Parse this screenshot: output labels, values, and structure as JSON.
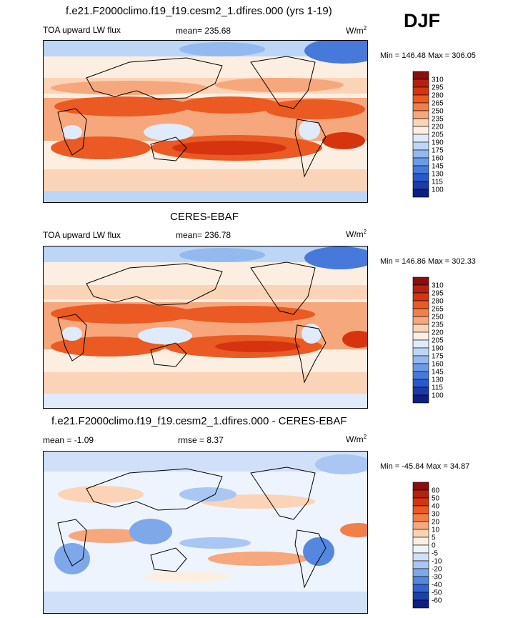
{
  "season_label": "DJF",
  "panels": [
    {
      "title": "f.e21.F2000climo.f19_f19.cesm2_1.dfires.000 (yrs 1-19)",
      "variable": "TOA upward LW flux",
      "stat_mean": "mean= 235.68",
      "stat_rmse": "",
      "units": "W/m",
      "units_exp": "2",
      "minmax": "Min = 146.48 Max = 306.05",
      "colorbar_levels": [
        "310",
        "295",
        "280",
        "265",
        "250",
        "235",
        "220",
        "205",
        "190",
        "175",
        "160",
        "145",
        "130",
        "115",
        "100"
      ],
      "colorbar_colors": [
        "#8b0d0d",
        "#b3220e",
        "#d6340f",
        "#ea5a22",
        "#f17f48",
        "#f6a77b",
        "#fbd3b6",
        "#fcefe2",
        "#dfeafb",
        "#bed6f6",
        "#94b9ef",
        "#6b9be6",
        "#4779db",
        "#2a59cc",
        "#1c3aa8",
        "#0d1f80"
      ]
    },
    {
      "title": "CERES-EBAF",
      "variable": "TOA upward LW flux",
      "stat_mean": "mean= 236.78",
      "stat_rmse": "",
      "units": "W/m",
      "units_exp": "2",
      "minmax": "Min = 146.86 Max = 302.33",
      "colorbar_levels": [
        "310",
        "295",
        "280",
        "265",
        "250",
        "235",
        "220",
        "205",
        "190",
        "175",
        "160",
        "145",
        "130",
        "115",
        "100"
      ],
      "colorbar_colors": [
        "#8b0d0d",
        "#b3220e",
        "#d6340f",
        "#ea5a22",
        "#f17f48",
        "#f6a77b",
        "#fbd3b6",
        "#fcefe2",
        "#dfeafb",
        "#bed6f6",
        "#94b9ef",
        "#6b9be6",
        "#4779db",
        "#2a59cc",
        "#1c3aa8",
        "#0d1f80"
      ]
    },
    {
      "title": "f.e21.F2000climo.f19_f19.cesm2_1.dfires.000 - CERES-EBAF",
      "variable": "",
      "stat_mean": "mean = -1.09",
      "stat_rmse": "rmse = 8.37",
      "units": "W/m",
      "units_exp": "2",
      "minmax": "Min = -45.84 Max = 34.87",
      "colorbar_levels": [
        "60",
        "50",
        "40",
        "30",
        "20",
        "10",
        "5",
        "0",
        "-5",
        "-10",
        "-20",
        "-30",
        "-40",
        "-50",
        "-60"
      ],
      "colorbar_colors": [
        "#8b0d0d",
        "#b3220e",
        "#d6340f",
        "#ea5a22",
        "#f17f48",
        "#f6a77b",
        "#fbd3b6",
        "#fcefe2",
        "#eef4fd",
        "#cfe0f8",
        "#a9c7f2",
        "#7ea8ea",
        "#5587de",
        "#3064cf",
        "#1b40b0",
        "#0d1f80"
      ]
    }
  ],
  "chart_data": [
    {
      "type": "heatmap",
      "title": "f.e21.F2000climo.f19_f19.cesm2_1.dfires.000 (yrs 1-19)",
      "variable": "TOA upward LW flux",
      "units": "W/m2",
      "mean": 235.68,
      "min": 146.48,
      "max": 306.05,
      "levels": [
        100,
        115,
        130,
        145,
        160,
        175,
        190,
        205,
        220,
        235,
        250,
        265,
        280,
        295,
        310
      ]
    },
    {
      "type": "heatmap",
      "title": "CERES-EBAF",
      "variable": "TOA upward LW flux",
      "units": "W/m2",
      "mean": 236.78,
      "min": 146.86,
      "max": 302.33,
      "levels": [
        100,
        115,
        130,
        145,
        160,
        175,
        190,
        205,
        220,
        235,
        250,
        265,
        280,
        295,
        310
      ]
    },
    {
      "type": "heatmap",
      "title": "f.e21.F2000climo.f19_f19.cesm2_1.dfires.000 - CERES-EBAF",
      "units": "W/m2",
      "mean": -1.09,
      "rmse": 8.37,
      "min": -45.84,
      "max": 34.87,
      "levels": [
        -60,
        -50,
        -40,
        -30,
        -20,
        -10,
        -5,
        0,
        5,
        10,
        20,
        30,
        40,
        50,
        60
      ]
    }
  ]
}
